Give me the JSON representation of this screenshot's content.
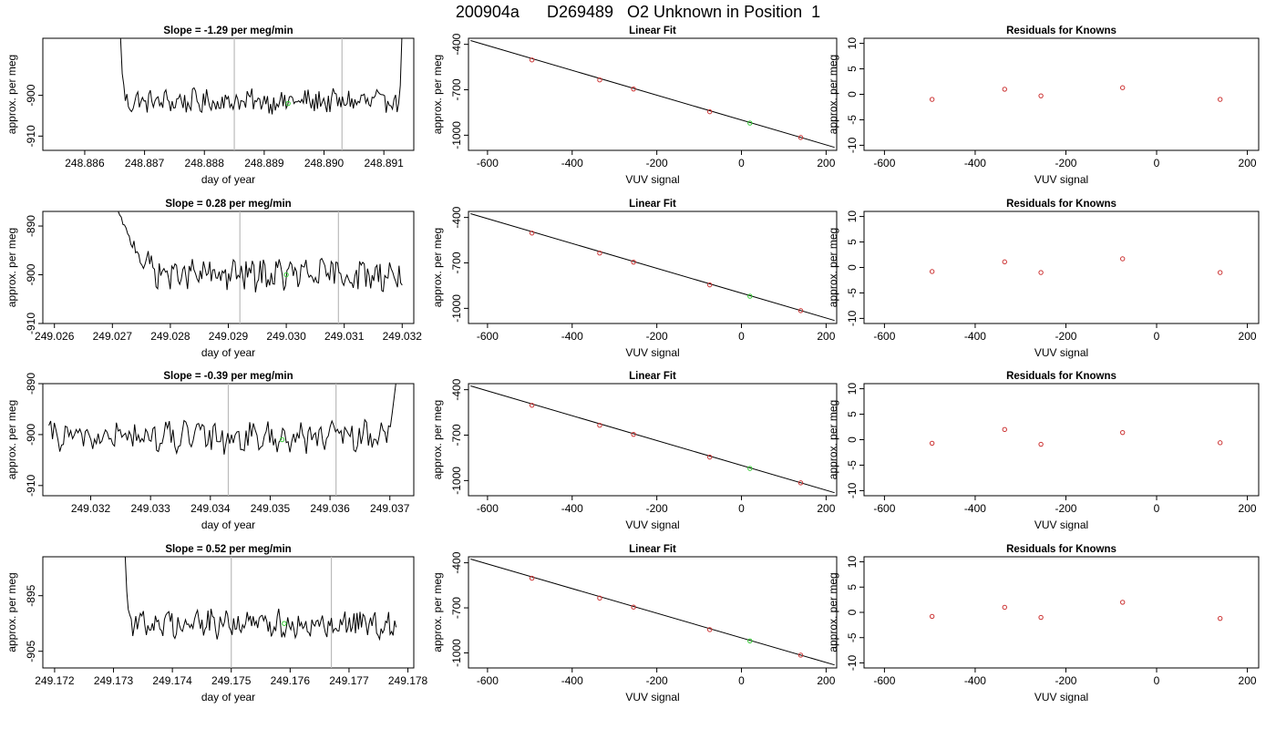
{
  "title": "200904a      D269489   O2 Unknown in Position  1",
  "colors": {
    "line": "#000000",
    "marker_known": "#cc3333",
    "marker_unknown": "#33cc33",
    "vline": "#bbbbbb",
    "frame": "#000000"
  },
  "chart_data": [
    {
      "row": 1,
      "col": 1,
      "type": "line",
      "title": "Slope =  -1.29  per meg/min",
      "xlabel": "day of year",
      "ylabel": "approx. per meg",
      "xlim": [
        248.8853,
        248.8915
      ],
      "ylim": [
        -913.5,
        -886
      ],
      "xticks": [
        248.886,
        248.887,
        248.888,
        248.889,
        248.89,
        248.891
      ],
      "xtick_labels": [
        "248.886",
        "248.887",
        "248.888",
        "248.889",
        "248.890",
        "248.891"
      ],
      "yticks": [
        -910,
        -900
      ],
      "ytick_labels": [
        "-910",
        "-900"
      ],
      "vlines": [
        248.8885,
        248.8903
      ],
      "series_x_range": [
        248.8866,
        248.8913
      ],
      "series_n": 180,
      "series_mean": -901.5,
      "series_amp": 2.5,
      "rise_left": {
        "from": -886,
        "span": 9e-05
      },
      "rise_right": {
        "from": -886,
        "span": 7e-05
      },
      "marker": {
        "x": 248.8894,
        "y": -902
      }
    },
    {
      "row": 1,
      "col": 2,
      "type": "scatter",
      "title": "Linear Fit",
      "xlabel": "VUV signal",
      "ylabel": "approx. per meg",
      "xlim": [
        -645,
        225
      ],
      "ylim": [
        -1100,
        -360
      ],
      "xticks": [
        -600,
        -400,
        -200,
        0,
        200
      ],
      "xtick_labels": [
        "-600",
        "-400",
        "-200",
        "0",
        "200"
      ],
      "yticks": [
        -400,
        -700,
        -1000
      ],
      "ytick_labels": [
        "-400",
        "-700",
        "-1000"
      ],
      "fit": {
        "x": [
          -640,
          220
        ],
        "y": [
          -375,
          -1080
        ]
      },
      "knowns": {
        "x": [
          -495,
          -335,
          -255,
          -75,
          140
        ],
        "y": [
          -503,
          -635,
          -695,
          -845,
          -1015
        ]
      },
      "unknown": {
        "x": [
          20
        ],
        "y": [
          -920
        ]
      }
    },
    {
      "row": 1,
      "col": 3,
      "type": "scatter",
      "title": "Residuals for Knowns",
      "xlabel": "VUV signal",
      "ylabel": "approx. per meg",
      "xlim": [
        -645,
        225
      ],
      "ylim": [
        -11,
        11
      ],
      "xticks": [
        -600,
        -400,
        -200,
        0,
        200
      ],
      "xtick_labels": [
        "-600",
        "-400",
        "-200",
        "0",
        "200"
      ],
      "yticks": [
        -10,
        -5,
        0,
        5,
        10
      ],
      "ytick_labels": [
        "-10",
        "-5",
        "0",
        "5",
        "10"
      ],
      "knowns": {
        "x": [
          -495,
          -335,
          -255,
          -75,
          140
        ],
        "y": [
          -1,
          1,
          -0.3,
          1.3,
          -1
        ]
      }
    },
    {
      "row": 2,
      "col": 1,
      "type": "line",
      "title": "Slope =  0.28  per meg/min",
      "xlabel": "day of year",
      "ylabel": "approx. per meg",
      "xlim": [
        249.0258,
        249.0322
      ],
      "ylim": [
        -910,
        -887
      ],
      "xticks": [
        249.026,
        249.027,
        249.028,
        249.029,
        249.03,
        249.031,
        249.032
      ],
      "xtick_labels": [
        "249.026",
        "249.027",
        "249.028",
        "249.029",
        "249.030",
        "249.031",
        "249.032"
      ],
      "yticks": [
        -910,
        -900,
        -890
      ],
      "ytick_labels": [
        "-910",
        "-900",
        "-890"
      ],
      "vlines": [
        249.0292,
        249.0309
      ],
      "series_x_range": [
        249.0271,
        249.032
      ],
      "series_n": 180,
      "series_mean": -900,
      "series_amp": 2.8,
      "rise_left": {
        "from": -887,
        "span": 0.0009
      },
      "marker": {
        "x": 249.03,
        "y": -900
      }
    },
    {
      "row": 2,
      "col": 2,
      "type": "scatter",
      "title": "Linear Fit",
      "xlabel": "VUV signal",
      "ylabel": "approx. per meg",
      "xlim": [
        -645,
        225
      ],
      "ylim": [
        -1100,
        -360
      ],
      "xticks": [
        -600,
        -400,
        -200,
        0,
        200
      ],
      "xtick_labels": [
        "-600",
        "-400",
        "-200",
        "0",
        "200"
      ],
      "yticks": [
        -400,
        -700,
        -1000
      ],
      "ytick_labels": [
        "-400",
        "-700",
        "-1000"
      ],
      "fit": {
        "x": [
          -640,
          220
        ],
        "y": [
          -375,
          -1080
        ]
      },
      "knowns": {
        "x": [
          -495,
          -335,
          -255,
          -75,
          140
        ],
        "y": [
          -503,
          -635,
          -695,
          -845,
          -1015
        ]
      },
      "unknown": {
        "x": [
          20
        ],
        "y": [
          -920
        ]
      }
    },
    {
      "row": 2,
      "col": 3,
      "type": "scatter",
      "title": "Residuals for Knowns",
      "xlabel": "VUV signal",
      "ylabel": "approx. per meg",
      "xlim": [
        -645,
        225
      ],
      "ylim": [
        -11,
        11
      ],
      "xticks": [
        -600,
        -400,
        -200,
        0,
        200
      ],
      "xtick_labels": [
        "-600",
        "-400",
        "-200",
        "0",
        "200"
      ],
      "yticks": [
        -10,
        -5,
        0,
        5,
        10
      ],
      "ytick_labels": [
        "-10",
        "-5",
        "0",
        "5",
        "10"
      ],
      "knowns": {
        "x": [
          -495,
          -335,
          -255,
          -75,
          140
        ],
        "y": [
          -0.8,
          1.1,
          -1,
          1.7,
          -1
        ]
      }
    },
    {
      "row": 3,
      "col": 1,
      "type": "line",
      "title": "Slope =  -0.39  per meg/min",
      "xlabel": "day of year",
      "ylabel": "approx. per meg",
      "xlim": [
        249.0312,
        249.0374
      ],
      "ylim": [
        -912,
        -890
      ],
      "xticks": [
        249.032,
        249.033,
        249.034,
        249.035,
        249.036,
        249.037
      ],
      "xtick_labels": [
        "249.032",
        "249.033",
        "249.034",
        "249.035",
        "249.036",
        "249.037"
      ],
      "yticks": [
        -910,
        -900,
        -890
      ],
      "ytick_labels": [
        "-910",
        "-900",
        "-890"
      ],
      "vlines": [
        249.0343,
        249.0361
      ],
      "series_x_range": [
        249.0313,
        249.0371
      ],
      "series_n": 190,
      "series_mean": -900.5,
      "series_amp": 2.6,
      "rise_right": {
        "from": -890,
        "span": 0.00025
      },
      "marker": {
        "x": 249.0352,
        "y": -901
      }
    },
    {
      "row": 3,
      "col": 2,
      "type": "scatter",
      "title": "Linear Fit",
      "xlabel": "VUV signal",
      "ylabel": "approx. per meg",
      "xlim": [
        -645,
        225
      ],
      "ylim": [
        -1100,
        -360
      ],
      "xticks": [
        -600,
        -400,
        -200,
        0,
        200
      ],
      "xtick_labels": [
        "-600",
        "-400",
        "-200",
        "0",
        "200"
      ],
      "yticks": [
        -400,
        -700,
        -1000
      ],
      "ytick_labels": [
        "-400",
        "-700",
        "-1000"
      ],
      "fit": {
        "x": [
          -640,
          220
        ],
        "y": [
          -375,
          -1080
        ]
      },
      "knowns": {
        "x": [
          -495,
          -335,
          -255,
          -75,
          140
        ],
        "y": [
          -503,
          -635,
          -695,
          -845,
          -1015
        ]
      },
      "unknown": {
        "x": [
          20
        ],
        "y": [
          -920
        ]
      }
    },
    {
      "row": 3,
      "col": 3,
      "type": "scatter",
      "title": "Residuals for Knowns",
      "xlabel": "VUV signal",
      "ylabel": "approx. per meg",
      "xlim": [
        -645,
        225
      ],
      "ylim": [
        -11,
        11
      ],
      "xticks": [
        -600,
        -400,
        -200,
        0,
        200
      ],
      "xtick_labels": [
        "-600",
        "-400",
        "-200",
        "0",
        "200"
      ],
      "yticks": [
        -10,
        -5,
        0,
        5,
        10
      ],
      "ytick_labels": [
        "-10",
        "-5",
        "0",
        "5",
        "10"
      ],
      "knowns": {
        "x": [
          -495,
          -335,
          -255,
          -75,
          140
        ],
        "y": [
          -0.7,
          2,
          -0.9,
          1.4,
          -0.6
        ]
      }
    },
    {
      "row": 4,
      "col": 1,
      "type": "line",
      "title": "Slope =  0.52  per meg/min",
      "xlabel": "day of year",
      "ylabel": "approx. per meg",
      "xlim": [
        249.1718,
        249.1781
      ],
      "ylim": [
        -908,
        -888
      ],
      "xticks": [
        249.172,
        249.173,
        249.174,
        249.175,
        249.176,
        249.177,
        249.178
      ],
      "xtick_labels": [
        "249.172",
        "249.173",
        "249.174",
        "249.175",
        "249.176",
        "249.177",
        "249.178"
      ],
      "yticks": [
        -905,
        -895
      ],
      "ytick_labels": [
        "-905",
        "-895"
      ],
      "vlines": [
        249.175,
        249.1767
      ],
      "series_x_range": [
        249.1732,
        249.1778
      ],
      "series_n": 180,
      "series_mean": -900,
      "series_amp": 2.2,
      "rise_left": {
        "from": -888,
        "span": 9e-05
      },
      "marker": {
        "x": 249.1759,
        "y": -900
      }
    },
    {
      "row": 4,
      "col": 2,
      "type": "scatter",
      "title": "Linear Fit",
      "xlabel": "VUV signal",
      "ylabel": "approx. per meg",
      "xlim": [
        -645,
        225
      ],
      "ylim": [
        -1100,
        -360
      ],
      "xticks": [
        -600,
        -400,
        -200,
        0,
        200
      ],
      "xtick_labels": [
        "-600",
        "-400",
        "-200",
        "0",
        "200"
      ],
      "yticks": [
        -400,
        -700,
        -1000
      ],
      "ytick_labels": [
        "-400",
        "-700",
        "-1000"
      ],
      "fit": {
        "x": [
          -640,
          220
        ],
        "y": [
          -375,
          -1080
        ]
      },
      "knowns": {
        "x": [
          -495,
          -335,
          -255,
          -75,
          140
        ],
        "y": [
          -503,
          -635,
          -695,
          -845,
          -1015
        ]
      },
      "unknown": {
        "x": [
          20
        ],
        "y": [
          -920
        ]
      }
    },
    {
      "row": 4,
      "col": 3,
      "type": "scatter",
      "title": "Residuals for Knowns",
      "xlabel": "VUV signal",
      "ylabel": "approx. per meg",
      "xlim": [
        -645,
        225
      ],
      "ylim": [
        -11,
        11
      ],
      "xticks": [
        -600,
        -400,
        -200,
        0,
        200
      ],
      "xtick_labels": [
        "-600",
        "-400",
        "-200",
        "0",
        "200"
      ],
      "yticks": [
        -10,
        -5,
        0,
        5,
        10
      ],
      "ytick_labels": [
        "-10",
        "-5",
        "0",
        "5",
        "10"
      ],
      "knowns": {
        "x": [
          -495,
          -335,
          -255,
          -75,
          140
        ],
        "y": [
          -0.8,
          1,
          -1,
          2,
          -1.2
        ]
      }
    }
  ]
}
